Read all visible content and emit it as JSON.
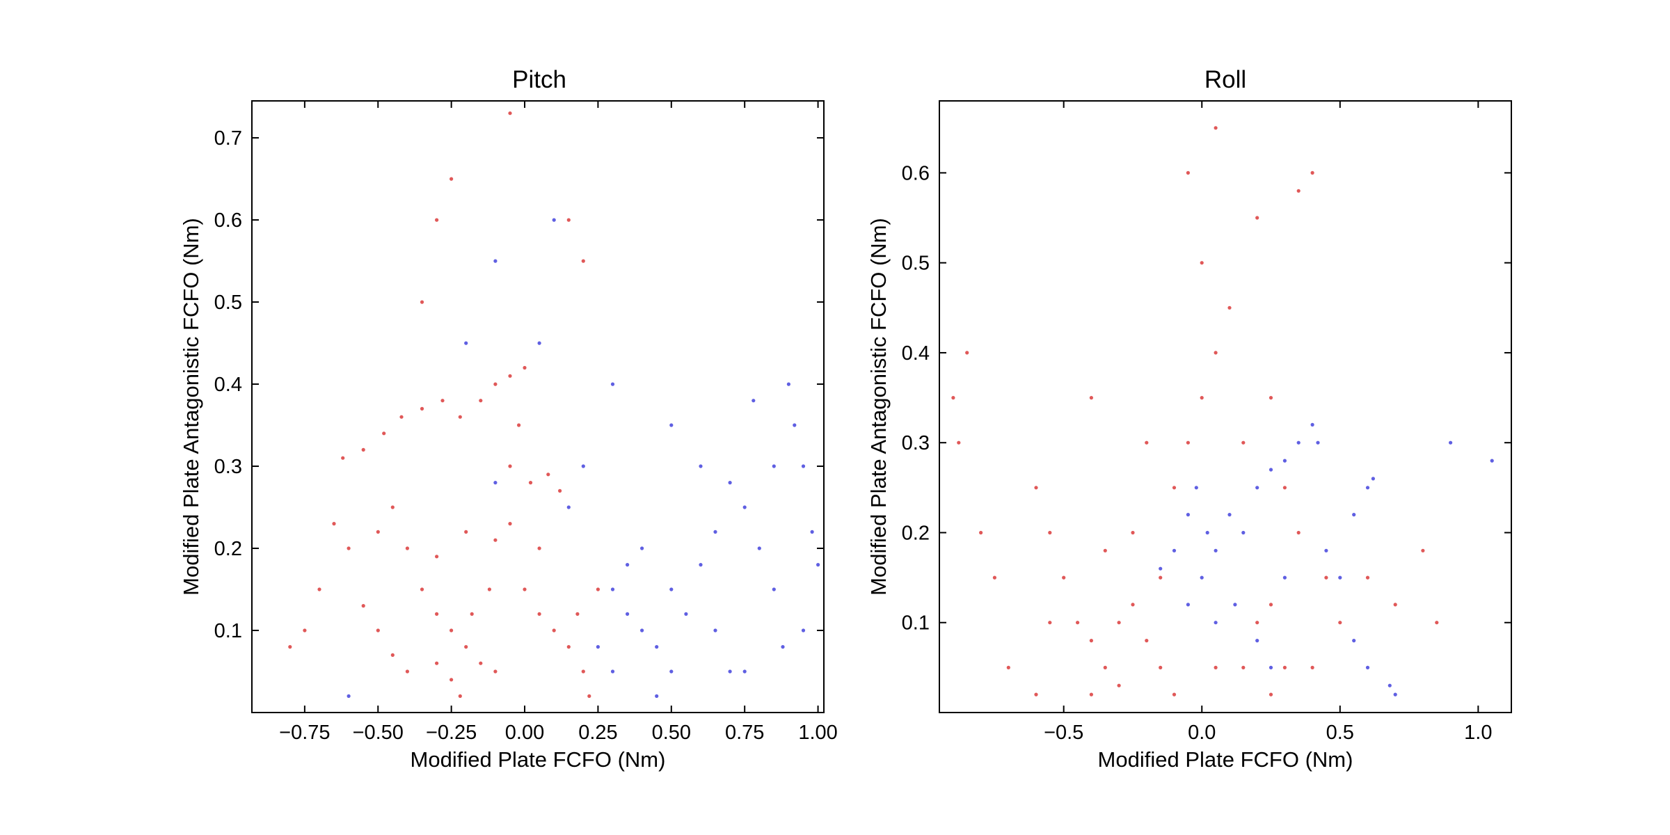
{
  "chart_data": [
    {
      "type": "scatter",
      "title": "Pitch",
      "xlabel": "Modified Plate FCFO (Nm)",
      "ylabel": "Modified Plate Antagonistic FCFO (Nm)",
      "xlim": [
        -0.93,
        1.02
      ],
      "ylim": [
        0.0,
        0.745
      ],
      "xticks": [
        -0.75,
        -0.5,
        -0.25,
        0.0,
        0.25,
        0.5,
        0.75,
        1.0
      ],
      "xtick_labels": [
        "−0.75",
        "−0.50",
        "−0.25",
        "0.00",
        "0.25",
        "0.50",
        "0.75",
        "1.00"
      ],
      "yticks": [
        0.1,
        0.2,
        0.3,
        0.4,
        0.5,
        0.6,
        0.7
      ],
      "ytick_labels": [
        "0.1",
        "0.2",
        "0.3",
        "0.4",
        "0.5",
        "0.6",
        "0.7"
      ],
      "colormap": {
        "negative": "#d62020",
        "neutral": "#f2f2f2",
        "positive": "#2a2ad8"
      },
      "series": [
        {
          "values": [
            [
              -0.62,
              0.31
            ],
            [
              -0.55,
              0.32
            ],
            [
              -0.48,
              0.34
            ],
            [
              -0.42,
              0.36
            ],
            [
              -0.35,
              0.37
            ],
            [
              -0.28,
              0.38
            ],
            [
              -0.22,
              0.36
            ],
            [
              -0.15,
              0.38
            ],
            [
              -0.1,
              0.4
            ],
            [
              -0.05,
              0.41
            ],
            [
              0.0,
              0.42
            ],
            [
              -0.02,
              0.35
            ],
            [
              -0.05,
              0.3
            ],
            [
              0.02,
              0.28
            ],
            [
              0.08,
              0.29
            ],
            [
              0.12,
              0.27
            ],
            [
              -0.45,
              0.25
            ],
            [
              -0.5,
              0.22
            ],
            [
              -0.4,
              0.2
            ],
            [
              -0.3,
              0.19
            ],
            [
              -0.2,
              0.22
            ],
            [
              -0.1,
              0.21
            ],
            [
              -0.05,
              0.23
            ],
            [
              0.05,
              0.2
            ],
            [
              -0.35,
              0.15
            ],
            [
              -0.3,
              0.12
            ],
            [
              -0.25,
              0.1
            ],
            [
              -0.2,
              0.08
            ],
            [
              -0.15,
              0.06
            ],
            [
              -0.1,
              0.05
            ],
            [
              -0.25,
              0.04
            ],
            [
              -0.22,
              0.02
            ],
            [
              -0.3,
              0.06
            ],
            [
              -0.45,
              0.07
            ],
            [
              -0.5,
              0.1
            ],
            [
              -0.55,
              0.13
            ],
            [
              -0.7,
              0.15
            ],
            [
              -0.75,
              0.1
            ],
            [
              -0.8,
              0.08
            ],
            [
              0.1,
              0.1
            ],
            [
              0.15,
              0.08
            ],
            [
              0.2,
              0.05
            ],
            [
              0.22,
              0.02
            ],
            [
              0.18,
              0.12
            ],
            [
              -0.6,
              0.2
            ],
            [
              -0.65,
              0.23
            ],
            [
              -0.35,
              0.5
            ],
            [
              -0.3,
              0.6
            ],
            [
              -0.25,
              0.65
            ],
            [
              -0.05,
              0.73
            ],
            [
              0.2,
              0.55
            ],
            [
              0.15,
              0.6
            ],
            [
              -0.12,
              0.15
            ],
            [
              -0.18,
              0.12
            ],
            [
              0.0,
              0.15
            ],
            [
              0.05,
              0.12
            ],
            [
              -0.4,
              0.05
            ],
            [
              0.25,
              0.15
            ]
          ]
        },
        {
          "values": [
            [
              0.3,
              0.15
            ],
            [
              0.35,
              0.12
            ],
            [
              0.4,
              0.1
            ],
            [
              0.45,
              0.08
            ],
            [
              0.5,
              0.05
            ],
            [
              0.55,
              0.12
            ],
            [
              0.6,
              0.18
            ],
            [
              0.65,
              0.22
            ],
            [
              0.7,
              0.28
            ],
            [
              0.75,
              0.25
            ],
            [
              0.8,
              0.2
            ],
            [
              0.85,
              0.15
            ],
            [
              0.9,
              0.4
            ],
            [
              0.92,
              0.35
            ],
            [
              0.95,
              0.3
            ],
            [
              0.98,
              0.22
            ],
            [
              1.0,
              0.18
            ],
            [
              0.95,
              0.1
            ],
            [
              0.88,
              0.08
            ],
            [
              0.7,
              0.05
            ],
            [
              0.4,
              0.2
            ],
            [
              0.35,
              0.18
            ],
            [
              0.3,
              0.05
            ],
            [
              0.25,
              0.08
            ],
            [
              0.5,
              0.15
            ],
            [
              0.45,
              0.02
            ],
            [
              0.65,
              0.1
            ],
            [
              0.75,
              0.05
            ],
            [
              0.6,
              0.3
            ],
            [
              0.1,
              0.6
            ],
            [
              0.05,
              0.45
            ],
            [
              -0.1,
              0.55
            ],
            [
              -0.2,
              0.45
            ],
            [
              0.3,
              0.4
            ],
            [
              0.5,
              0.35
            ],
            [
              -0.6,
              0.02
            ],
            [
              0.85,
              0.3
            ],
            [
              0.78,
              0.38
            ],
            [
              0.2,
              0.3
            ],
            [
              0.15,
              0.25
            ],
            [
              -0.1,
              0.28
            ]
          ]
        }
      ]
    },
    {
      "type": "scatter",
      "title": "Roll",
      "xlabel": "Modified Plate FCFO (Nm)",
      "ylabel": "Modified Plate Antagonistic FCFO (Nm)",
      "xlim": [
        -0.95,
        1.12
      ],
      "ylim": [
        0.0,
        0.68
      ],
      "xticks": [
        -0.5,
        0.0,
        0.5,
        1.0
      ],
      "xtick_labels": [
        "−0.5",
        "0.0",
        "0.5",
        "1.0"
      ],
      "yticks": [
        0.1,
        0.2,
        0.3,
        0.4,
        0.5,
        0.6
      ],
      "ytick_labels": [
        "0.1",
        "0.2",
        "0.3",
        "0.4",
        "0.5",
        "0.6"
      ],
      "colormap": {
        "negative": "#d62020",
        "neutral": "#f2f2f2",
        "positive": "#2a2ad8"
      },
      "series": [
        {
          "values": [
            [
              -0.6,
              0.25
            ],
            [
              -0.55,
              0.2
            ],
            [
              -0.5,
              0.15
            ],
            [
              -0.45,
              0.1
            ],
            [
              -0.4,
              0.08
            ],
            [
              -0.35,
              0.05
            ],
            [
              -0.3,
              0.1
            ],
            [
              -0.25,
              0.12
            ],
            [
              -0.2,
              0.08
            ],
            [
              -0.15,
              0.05
            ],
            [
              -0.1,
              0.02
            ],
            [
              -0.3,
              0.03
            ],
            [
              -0.4,
              0.02
            ],
            [
              -0.25,
              0.2
            ],
            [
              -0.1,
              0.25
            ],
            [
              -0.05,
              0.3
            ],
            [
              0.0,
              0.35
            ],
            [
              0.05,
              0.4
            ],
            [
              0.1,
              0.45
            ],
            [
              0.0,
              0.5
            ],
            [
              -0.05,
              0.6
            ],
            [
              0.05,
              0.65
            ],
            [
              0.2,
              0.55
            ],
            [
              0.25,
              0.35
            ],
            [
              0.3,
              0.25
            ],
            [
              0.35,
              0.2
            ],
            [
              0.2,
              0.1
            ],
            [
              0.15,
              0.05
            ],
            [
              0.25,
              0.02
            ],
            [
              0.4,
              0.05
            ],
            [
              0.5,
              0.1
            ],
            [
              0.6,
              0.15
            ],
            [
              0.7,
              0.12
            ],
            [
              0.8,
              0.18
            ],
            [
              0.85,
              0.1
            ],
            [
              -0.85,
              0.4
            ],
            [
              -0.9,
              0.35
            ],
            [
              -0.88,
              0.3
            ],
            [
              -0.8,
              0.2
            ],
            [
              -0.75,
              0.15
            ],
            [
              -0.7,
              0.05
            ],
            [
              -0.6,
              0.02
            ],
            [
              0.4,
              0.6
            ],
            [
              0.35,
              0.58
            ],
            [
              -0.15,
              0.15
            ],
            [
              -0.35,
              0.18
            ],
            [
              -0.55,
              0.1
            ],
            [
              0.3,
              0.05
            ],
            [
              0.45,
              0.15
            ],
            [
              0.15,
              0.3
            ],
            [
              -0.2,
              0.3
            ],
            [
              -0.4,
              0.35
            ],
            [
              0.05,
              0.05
            ],
            [
              0.25,
              0.12
            ]
          ]
        },
        {
          "values": [
            [
              -0.05,
              0.22
            ],
            [
              -0.02,
              0.25
            ],
            [
              0.02,
              0.2
            ],
            [
              0.05,
              0.18
            ],
            [
              0.1,
              0.22
            ],
            [
              0.15,
              0.2
            ],
            [
              0.2,
              0.25
            ],
            [
              0.25,
              0.27
            ],
            [
              0.3,
              0.28
            ],
            [
              0.35,
              0.3
            ],
            [
              0.4,
              0.32
            ],
            [
              0.42,
              0.3
            ],
            [
              0.55,
              0.22
            ],
            [
              0.6,
              0.25
            ],
            [
              0.62,
              0.26
            ],
            [
              0.5,
              0.15
            ],
            [
              0.45,
              0.18
            ],
            [
              0.6,
              0.05
            ],
            [
              0.7,
              0.02
            ],
            [
              -0.1,
              0.18
            ],
            [
              -0.15,
              0.16
            ],
            [
              0.0,
              0.15
            ],
            [
              0.12,
              0.12
            ],
            [
              0.2,
              0.08
            ],
            [
              0.05,
              0.1
            ],
            [
              0.3,
              0.15
            ],
            [
              0.25,
              0.05
            ],
            [
              -0.05,
              0.12
            ],
            [
              0.55,
              0.08
            ],
            [
              0.68,
              0.03
            ],
            [
              0.9,
              0.3
            ],
            [
              1.05,
              0.28
            ]
          ]
        }
      ]
    }
  ]
}
